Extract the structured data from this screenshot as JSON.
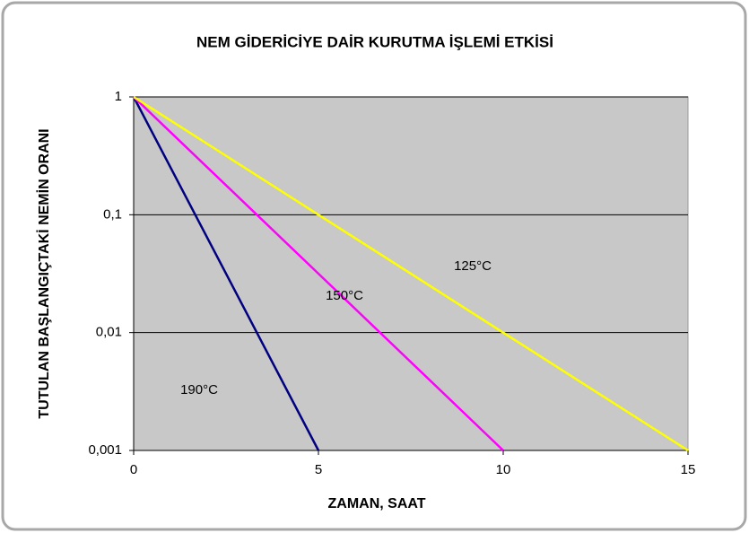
{
  "chart_data": {
    "type": "line",
    "title": "NEM GİDERİCİYE DAİR KURUTMA İŞLEMİ ETKİSİ",
    "x_label": "ZAMAN, SAAT",
    "y_label": "TUTULAN BAŞLANGIÇTAKİ NEMİN ORANI",
    "series": [
      {
        "name": "190°C",
        "color": "#000080",
        "x": [
          0,
          5
        ],
        "values": [
          1,
          0.001
        ]
      },
      {
        "name": "150°C",
        "color": "#ff00ff",
        "x": [
          0,
          10
        ],
        "values": [
          1,
          0.001
        ]
      },
      {
        "name": "125°C",
        "color": "#ffff00",
        "x": [
          0,
          15
        ],
        "values": [
          1,
          0.001
        ]
      }
    ],
    "xlim": [
      0,
      15
    ],
    "xticks": [
      0,
      5,
      10,
      15
    ],
    "ylim": [
      0.001,
      1
    ],
    "yticks": [
      {
        "value": 0.001,
        "label": "0,001"
      },
      {
        "value": 0.01,
        "label": "0,01"
      },
      {
        "value": 0.1,
        "label": "0,1"
      },
      1
    ],
    "ylog": true,
    "grid": true
  }
}
